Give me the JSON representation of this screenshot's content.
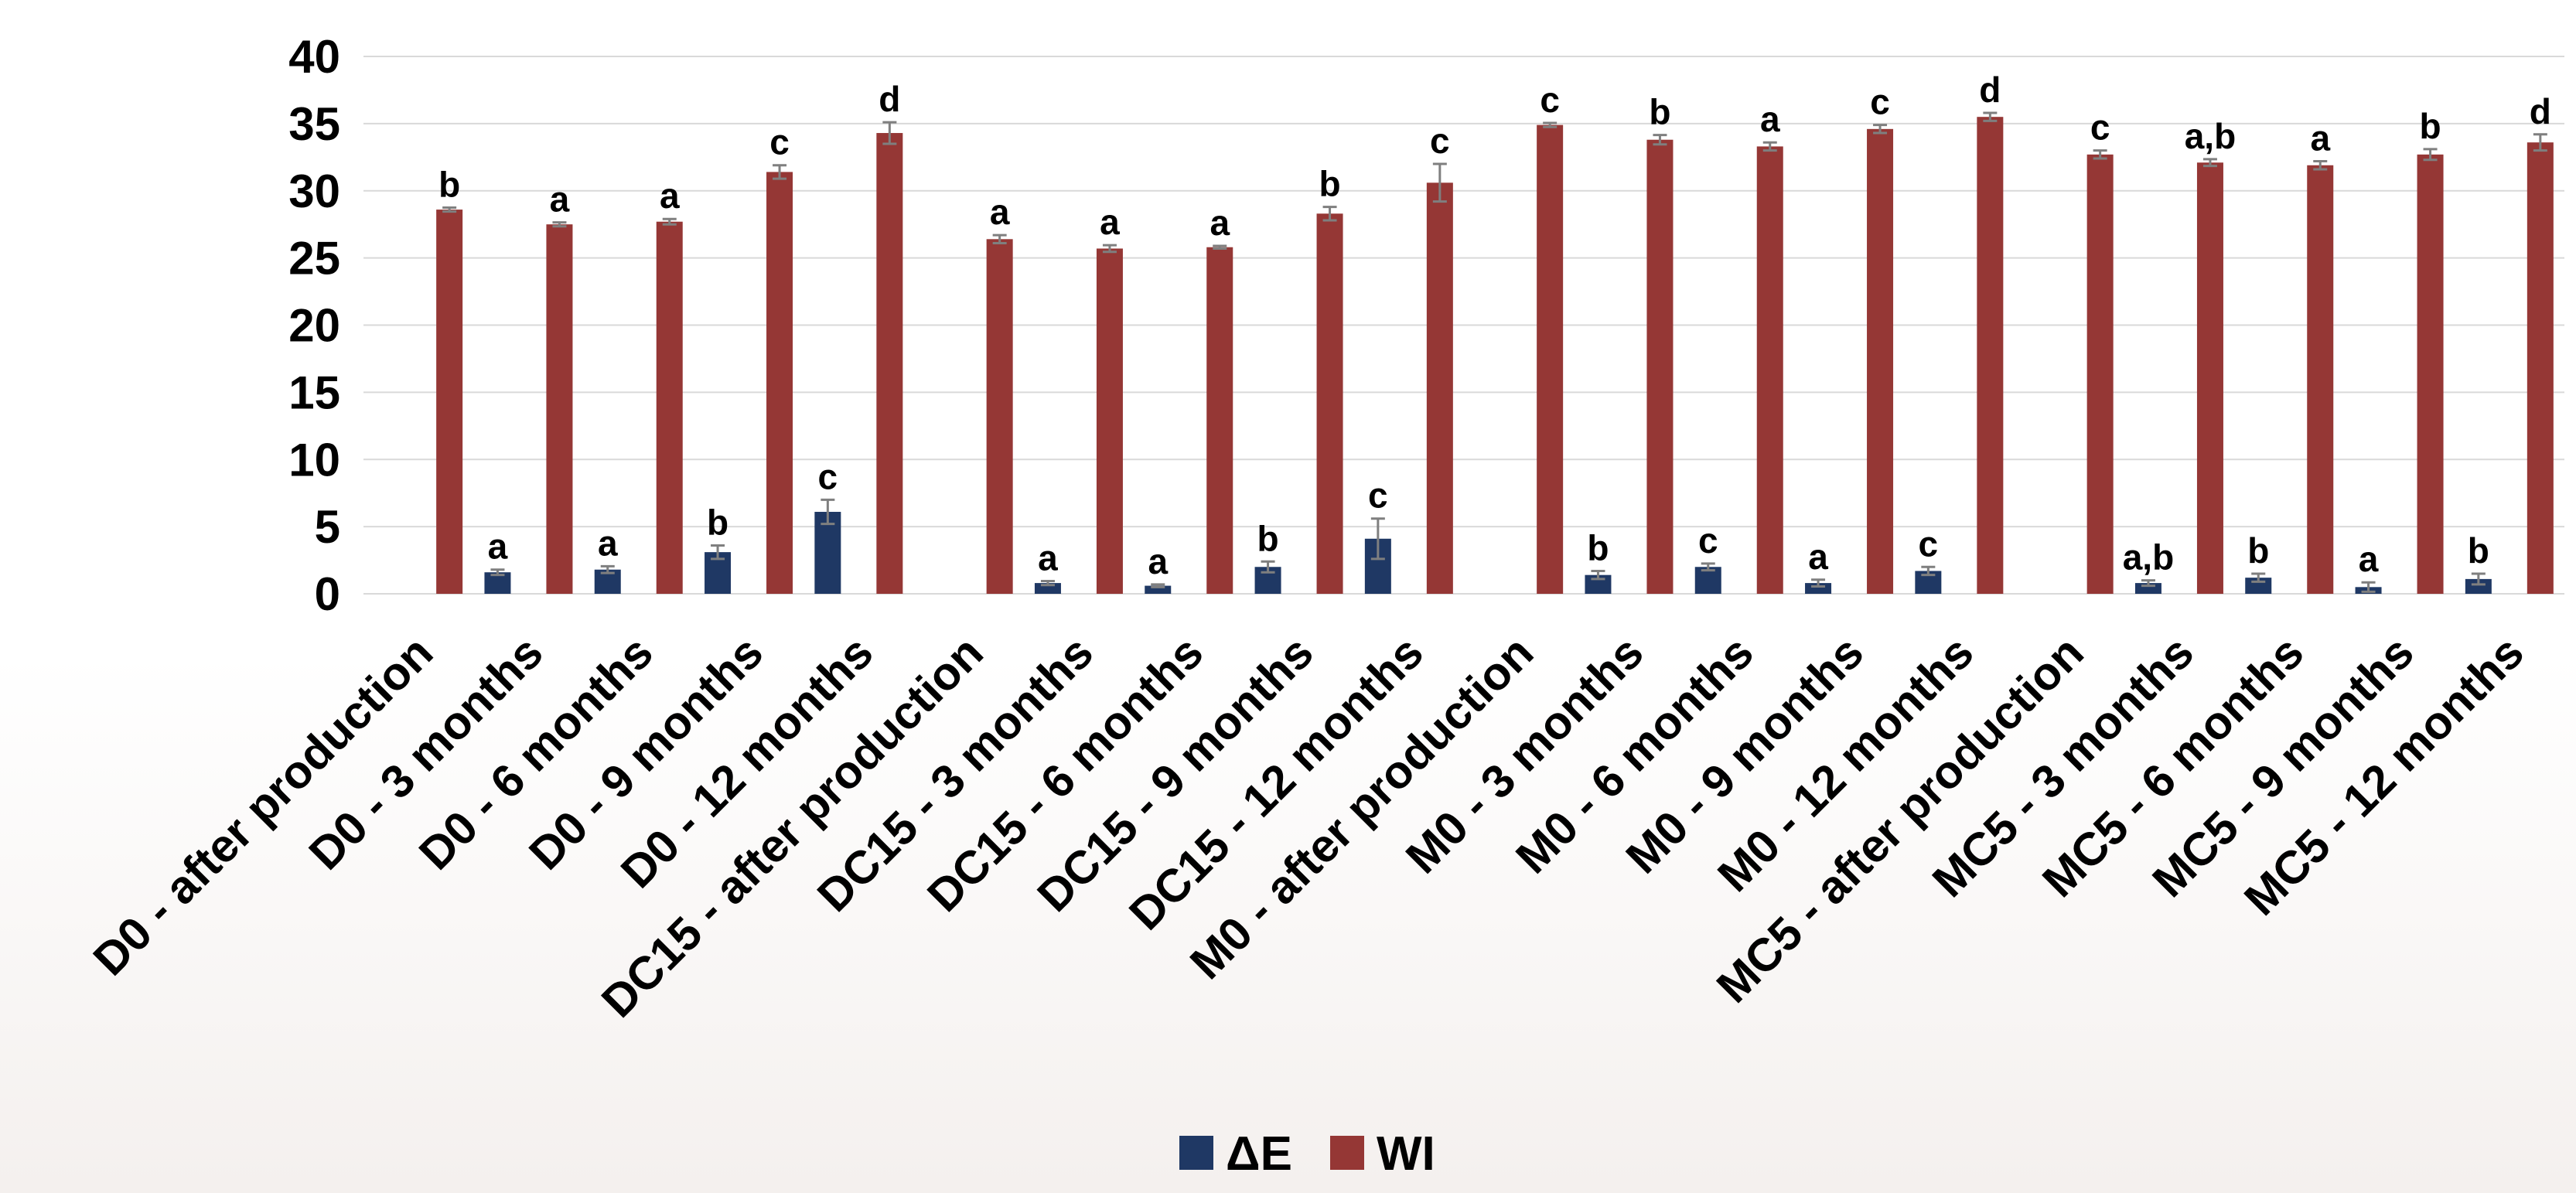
{
  "chart_data": {
    "type": "bar",
    "title": "",
    "xlabel": "",
    "ylabel": "",
    "ylim": [
      0,
      40
    ],
    "yticks": [
      0,
      5,
      10,
      15,
      20,
      25,
      30,
      35,
      40
    ],
    "grid": true,
    "legend_position": "bottom-center",
    "categories": [
      "D0 - after production",
      "D0 - 3 months",
      "D0 - 6 months",
      "D0 - 9 months",
      "D0 - 12 months",
      "DC15 - after production",
      "DC15 - 3 months",
      "DC15 - 6 months",
      "DC15 - 9 months",
      "DC15 - 12 months",
      "M0 - after production",
      "M0 - 3 months",
      "M0 - 6 months",
      "M0 - 9 months",
      "M0 - 12 months",
      "MC5 - after production",
      "MC5 - 3 months",
      "MC5 - 6 months",
      "MC5 - 9 months",
      "MC5 - 12 months"
    ],
    "series": [
      {
        "name": "ΔE",
        "color": "#1f3864",
        "values": [
          null,
          1.6,
          1.8,
          3.1,
          6.1,
          null,
          0.8,
          0.6,
          2.0,
          4.1,
          null,
          1.4,
          2.0,
          0.8,
          1.7,
          null,
          0.8,
          1.2,
          0.5,
          1.1
        ],
        "errors": [
          null,
          0.2,
          0.25,
          0.5,
          0.9,
          null,
          0.15,
          0.1,
          0.4,
          1.5,
          null,
          0.3,
          0.25,
          0.25,
          0.3,
          null,
          0.2,
          0.3,
          0.35,
          0.4
        ],
        "labels": [
          "",
          "a",
          "a",
          "b",
          "c",
          "",
          "a",
          "a",
          "b",
          "c",
          "",
          "b",
          "c",
          "a",
          "c",
          "",
          "a,b",
          "b",
          "a",
          "b"
        ]
      },
      {
        "name": "WI",
        "color": "#953735",
        "values": [
          28.6,
          27.5,
          27.7,
          31.4,
          34.3,
          26.4,
          25.7,
          25.8,
          28.3,
          30.6,
          34.9,
          33.8,
          33.3,
          34.6,
          35.5,
          32.7,
          32.1,
          31.9,
          32.7,
          33.6
        ],
        "errors": [
          0.15,
          0.15,
          0.2,
          0.5,
          0.8,
          0.3,
          0.25,
          0.1,
          0.5,
          1.4,
          0.15,
          0.35,
          0.3,
          0.3,
          0.3,
          0.3,
          0.25,
          0.3,
          0.4,
          0.6
        ],
        "labels": [
          "b",
          "a",
          "a",
          "c",
          "d",
          "a",
          "a",
          "a",
          "b",
          "c",
          "c",
          "b",
          "a",
          "c",
          "d",
          "c",
          "a,b",
          "a",
          "b",
          "d"
        ]
      }
    ]
  }
}
